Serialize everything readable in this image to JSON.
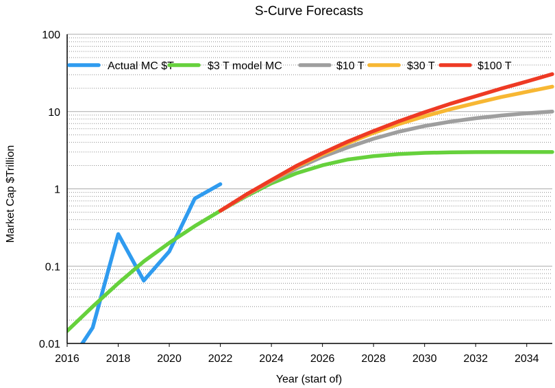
{
  "chart_data": {
    "type": "line",
    "title": "S-Curve Forecasts",
    "xlabel": "Year (start of)",
    "ylabel": "Market Cap $Trillion",
    "y_scale": "log",
    "xlim": [
      2016,
      2035
    ],
    "ylim": [
      0.01,
      100
    ],
    "x_ticks": [
      "2016",
      "2018",
      "2020",
      "2022",
      "2024",
      "2026",
      "2028",
      "2030",
      "2032",
      "2034"
    ],
    "y_ticks": [
      "0.01",
      "0.1",
      "1",
      "10",
      "100"
    ],
    "grid": "horizontal dotted minor gridlines, solid gridlines at decades",
    "legend_position": "top",
    "series": [
      {
        "name": "Actual MC $T",
        "color": "#2f9bef",
        "x": [
          2016,
          2016.5,
          2017,
          2018,
          2019,
          2020,
          2021,
          2022
        ],
        "y": [
          0.007,
          0.009,
          0.016,
          0.26,
          0.065,
          0.155,
          0.75,
          1.15
        ]
      },
      {
        "name": "$3 T model MC",
        "color": "#66d13c",
        "x": [
          2016,
          2017,
          2018,
          2019,
          2020,
          2021,
          2022,
          2023,
          2024,
          2025,
          2026,
          2027,
          2028,
          2029,
          2030,
          2031,
          2032,
          2033,
          2034,
          2035
        ],
        "y": [
          0.0145,
          0.03,
          0.06,
          0.115,
          0.2,
          0.33,
          0.52,
          0.8,
          1.18,
          1.6,
          2.02,
          2.4,
          2.65,
          2.82,
          2.92,
          2.97,
          2.99,
          3.0,
          3.0,
          3.0
        ]
      },
      {
        "name": "$10 T",
        "color": "#9e9e9e",
        "x": [
          2022,
          2023,
          2024,
          2025,
          2026,
          2027,
          2028,
          2029,
          2030,
          2031,
          2032,
          2033,
          2034,
          2035
        ],
        "y": [
          0.52,
          0.82,
          1.25,
          1.85,
          2.6,
          3.45,
          4.45,
          5.5,
          6.5,
          7.4,
          8.2,
          8.9,
          9.5,
          10.0
        ]
      },
      {
        "name": "$30 T",
        "color": "#f7b733",
        "x": [
          2022,
          2023,
          2024,
          2025,
          2026,
          2027,
          2028,
          2029,
          2030,
          2031,
          2032,
          2033,
          2034,
          2035
        ],
        "y": [
          0.52,
          0.83,
          1.28,
          1.95,
          2.8,
          3.9,
          5.3,
          6.9,
          8.7,
          10.7,
          12.9,
          15.4,
          18.0,
          21.0
        ]
      },
      {
        "name": "$100 T",
        "color": "#ee3a24",
        "x": [
          2022,
          2023,
          2024,
          2025,
          2026,
          2027,
          2028,
          2029,
          2030,
          2031,
          2032,
          2033,
          2034,
          2035
        ],
        "y": [
          0.52,
          0.84,
          1.3,
          2.0,
          2.9,
          4.1,
          5.6,
          7.5,
          9.8,
          12.6,
          15.8,
          19.8,
          24.5,
          30.5
        ]
      }
    ]
  }
}
